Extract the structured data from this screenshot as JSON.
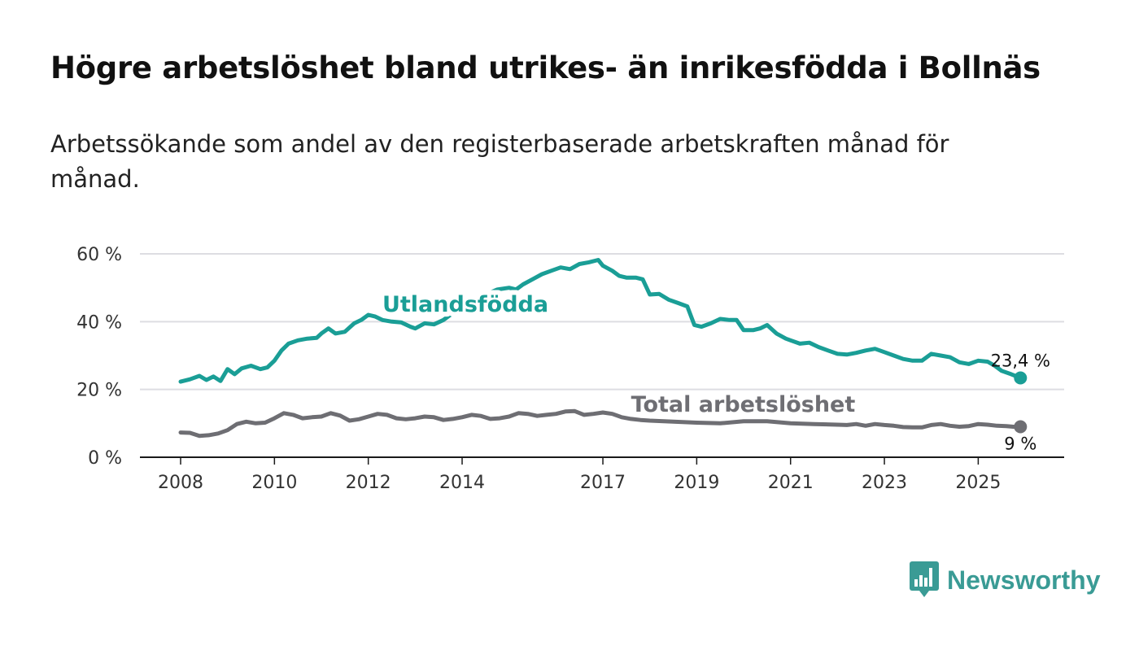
{
  "chart_data": {
    "type": "line",
    "title": "Högre arbetslöshet bland utrikes- än inrikesfödda i Bollnäs",
    "subtitle": "Arbetssökande som andel av den registerbaserade arbetskraften månad för månad.",
    "xlabel": "",
    "ylabel": "",
    "xlim": [
      2008,
      2026.3
    ],
    "ylim": [
      0,
      60
    ],
    "y_ticks": [
      0,
      20,
      40,
      60
    ],
    "y_tick_labels": [
      "0 %",
      "20 %",
      "40 %",
      "60 %"
    ],
    "x_ticks": [
      2008,
      2010,
      2012,
      2014,
      2017,
      2019,
      2021,
      2023,
      2025
    ],
    "x_tick_labels": [
      "2008",
      "2010",
      "2012",
      "2014",
      "2017",
      "2019",
      "2021",
      "2023",
      "2025"
    ],
    "grid": true,
    "series": [
      {
        "name": "Utlandsfödda",
        "color": "#1a9e96",
        "end_label": "23,4 %",
        "end_value": 23.4,
        "label_at": [
          2012.3,
          43
        ],
        "points": [
          [
            2008.0,
            22.3
          ],
          [
            2008.2,
            23.0
          ],
          [
            2008.4,
            24.0
          ],
          [
            2008.55,
            22.8
          ],
          [
            2008.7,
            23.8
          ],
          [
            2008.85,
            22.5
          ],
          [
            2009.0,
            26.0
          ],
          [
            2009.15,
            24.5
          ],
          [
            2009.3,
            26.2
          ],
          [
            2009.5,
            27.0
          ],
          [
            2009.7,
            26.0
          ],
          [
            2009.85,
            26.5
          ],
          [
            2010.0,
            28.5
          ],
          [
            2010.15,
            31.5
          ],
          [
            2010.3,
            33.5
          ],
          [
            2010.5,
            34.5
          ],
          [
            2010.7,
            35.0
          ],
          [
            2010.9,
            35.2
          ],
          [
            2011.0,
            36.5
          ],
          [
            2011.15,
            38.0
          ],
          [
            2011.3,
            36.5
          ],
          [
            2011.5,
            37.0
          ],
          [
            2011.7,
            39.5
          ],
          [
            2011.85,
            40.5
          ],
          [
            2012.0,
            42.0
          ],
          [
            2012.15,
            41.5
          ],
          [
            2012.3,
            40.5
          ],
          [
            2012.5,
            40.0
          ],
          [
            2012.7,
            39.8
          ],
          [
            2012.9,
            38.5
          ],
          [
            2013.0,
            38.0
          ],
          [
            2013.2,
            39.5
          ],
          [
            2013.4,
            39.2
          ],
          [
            2013.6,
            40.5
          ],
          [
            2013.8,
            42.5
          ],
          [
            2014.0,
            44.0
          ],
          [
            2014.25,
            46.0
          ],
          [
            2014.5,
            48.0
          ],
          [
            2014.75,
            49.5
          ],
          [
            2015.0,
            50.0
          ],
          [
            2015.15,
            49.5
          ],
          [
            2015.3,
            51.0
          ],
          [
            2015.5,
            52.5
          ],
          [
            2015.7,
            54.0
          ],
          [
            2015.9,
            55.0
          ],
          [
            2016.1,
            56.0
          ],
          [
            2016.3,
            55.5
          ],
          [
            2016.5,
            57.0
          ],
          [
            2016.7,
            57.5
          ],
          [
            2016.9,
            58.2
          ],
          [
            2017.0,
            56.5
          ],
          [
            2017.2,
            55.0
          ],
          [
            2017.35,
            53.5
          ],
          [
            2017.5,
            53.0
          ],
          [
            2017.7,
            53.0
          ],
          [
            2017.85,
            52.5
          ],
          [
            2018.0,
            48.0
          ],
          [
            2018.2,
            48.2
          ],
          [
            2018.4,
            46.5
          ],
          [
            2018.6,
            45.5
          ],
          [
            2018.8,
            44.5
          ],
          [
            2018.95,
            39.0
          ],
          [
            2019.1,
            38.5
          ],
          [
            2019.3,
            39.5
          ],
          [
            2019.5,
            40.8
          ],
          [
            2019.7,
            40.5
          ],
          [
            2019.85,
            40.5
          ],
          [
            2020.0,
            37.5
          ],
          [
            2020.2,
            37.5
          ],
          [
            2020.35,
            38.0
          ],
          [
            2020.5,
            39.0
          ],
          [
            2020.7,
            36.5
          ],
          [
            2020.9,
            35.0
          ],
          [
            2021.0,
            34.5
          ],
          [
            2021.2,
            33.5
          ],
          [
            2021.4,
            33.8
          ],
          [
            2021.6,
            32.5
          ],
          [
            2021.8,
            31.5
          ],
          [
            2022.0,
            30.5
          ],
          [
            2022.2,
            30.3
          ],
          [
            2022.4,
            30.8
          ],
          [
            2022.6,
            31.5
          ],
          [
            2022.8,
            32.0
          ],
          [
            2023.0,
            31.0
          ],
          [
            2023.2,
            30.0
          ],
          [
            2023.4,
            29.0
          ],
          [
            2023.6,
            28.5
          ],
          [
            2023.8,
            28.5
          ],
          [
            2024.0,
            30.5
          ],
          [
            2024.2,
            30.0
          ],
          [
            2024.4,
            29.5
          ],
          [
            2024.6,
            28.0
          ],
          [
            2024.8,
            27.5
          ],
          [
            2025.0,
            28.5
          ],
          [
            2025.2,
            28.2
          ],
          [
            2025.35,
            27.0
          ],
          [
            2025.5,
            25.5
          ],
          [
            2025.7,
            24.5
          ],
          [
            2025.9,
            23.4
          ]
        ]
      },
      {
        "name": "Total arbetslöshet",
        "color": "#6e6e73",
        "end_label": "9 %",
        "end_value": 9.0,
        "label_at": [
          2017.6,
          13.5
        ],
        "points": [
          [
            2008.0,
            7.3
          ],
          [
            2008.2,
            7.2
          ],
          [
            2008.4,
            6.3
          ],
          [
            2008.6,
            6.5
          ],
          [
            2008.8,
            7.0
          ],
          [
            2009.0,
            8.0
          ],
          [
            2009.2,
            9.8
          ],
          [
            2009.4,
            10.5
          ],
          [
            2009.6,
            10.0
          ],
          [
            2009.8,
            10.2
          ],
          [
            2010.0,
            11.5
          ],
          [
            2010.2,
            13.0
          ],
          [
            2010.4,
            12.5
          ],
          [
            2010.6,
            11.5
          ],
          [
            2010.8,
            11.8
          ],
          [
            2011.0,
            12.0
          ],
          [
            2011.2,
            13.0
          ],
          [
            2011.4,
            12.3
          ],
          [
            2011.6,
            10.8
          ],
          [
            2011.8,
            11.2
          ],
          [
            2012.0,
            12.0
          ],
          [
            2012.2,
            12.8
          ],
          [
            2012.4,
            12.5
          ],
          [
            2012.6,
            11.5
          ],
          [
            2012.8,
            11.2
          ],
          [
            2013.0,
            11.5
          ],
          [
            2013.2,
            12.0
          ],
          [
            2013.4,
            11.8
          ],
          [
            2013.6,
            11.0
          ],
          [
            2013.8,
            11.3
          ],
          [
            2014.0,
            11.8
          ],
          [
            2014.2,
            12.5
          ],
          [
            2014.4,
            12.2
          ],
          [
            2014.6,
            11.3
          ],
          [
            2014.8,
            11.5
          ],
          [
            2015.0,
            12.0
          ],
          [
            2015.2,
            13.0
          ],
          [
            2015.4,
            12.8
          ],
          [
            2015.6,
            12.2
          ],
          [
            2015.8,
            12.5
          ],
          [
            2016.0,
            12.8
          ],
          [
            2016.2,
            13.5
          ],
          [
            2016.4,
            13.6
          ],
          [
            2016.6,
            12.5
          ],
          [
            2016.8,
            12.8
          ],
          [
            2017.0,
            13.2
          ],
          [
            2017.2,
            12.8
          ],
          [
            2017.4,
            11.8
          ],
          [
            2017.6,
            11.3
          ],
          [
            2017.8,
            11.0
          ],
          [
            2018.0,
            10.8
          ],
          [
            2018.5,
            10.5
          ],
          [
            2019.0,
            10.2
          ],
          [
            2019.5,
            10.0
          ],
          [
            2020.0,
            10.6
          ],
          [
            2020.5,
            10.6
          ],
          [
            2021.0,
            10.0
          ],
          [
            2021.5,
            9.8
          ],
          [
            2022.0,
            9.6
          ],
          [
            2022.2,
            9.5
          ],
          [
            2022.4,
            9.8
          ],
          [
            2022.6,
            9.3
          ],
          [
            2022.8,
            9.8
          ],
          [
            2023.0,
            9.5
          ],
          [
            2023.2,
            9.3
          ],
          [
            2023.4,
            8.9
          ],
          [
            2023.6,
            8.8
          ],
          [
            2023.8,
            8.8
          ],
          [
            2024.0,
            9.5
          ],
          [
            2024.2,
            9.8
          ],
          [
            2024.4,
            9.3
          ],
          [
            2024.6,
            9.0
          ],
          [
            2024.8,
            9.2
          ],
          [
            2025.0,
            9.8
          ],
          [
            2025.2,
            9.6
          ],
          [
            2025.4,
            9.3
          ],
          [
            2025.6,
            9.2
          ],
          [
            2025.75,
            9.0
          ],
          [
            2025.9,
            9.0
          ]
        ]
      }
    ]
  },
  "brand": {
    "name": "Newsworthy",
    "color": "#3a9b95",
    "icon": "bar-chart-speech-bubble-icon"
  }
}
